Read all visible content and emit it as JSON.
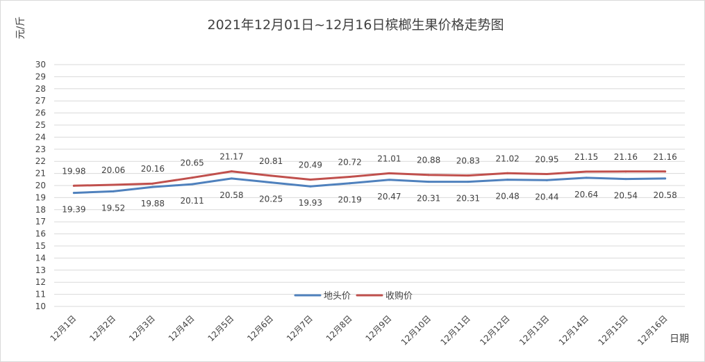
{
  "chart_data": {
    "type": "line",
    "title": "2021年12月01日~12月16日槟榔生果价格走势图",
    "xlabel": "日期",
    "ylabel": "元/斤",
    "ylim": [
      10,
      30
    ],
    "yticks": [
      10,
      11,
      12,
      13,
      14,
      15,
      16,
      17,
      18,
      19,
      20,
      21,
      22,
      23,
      24,
      25,
      26,
      27,
      28,
      29,
      30
    ],
    "grid": true,
    "legend_position": "bottom-center",
    "categories": [
      "12月1日",
      "12月2日",
      "12月3日",
      "12月4日",
      "12月5日",
      "12月6日",
      "12月7日",
      "12月8日",
      "12月9日",
      "12月10日",
      "12月11日",
      "12月12日",
      "12月13日",
      "12月14日",
      "12月15日",
      "12月16日"
    ],
    "series": [
      {
        "name": "地头价",
        "color": "#4f81bd",
        "label_position": "below",
        "values": [
          19.39,
          19.52,
          19.88,
          20.11,
          20.58,
          20.25,
          19.93,
          20.19,
          20.47,
          20.31,
          20.31,
          20.48,
          20.44,
          20.64,
          20.54,
          20.58
        ],
        "labels": [
          "19.39",
          "19.52",
          "19.88",
          "20.11",
          "20.58",
          "20.25",
          "19.93",
          "20.19",
          "20.47",
          "20.31",
          "20.31",
          "20.48",
          "20.44",
          "20.64",
          "20.54",
          "20.58"
        ]
      },
      {
        "name": "收购价",
        "color": "#c0504d",
        "label_position": "above",
        "values": [
          19.98,
          20.06,
          20.16,
          20.65,
          21.17,
          20.81,
          20.49,
          20.72,
          21.01,
          20.88,
          20.83,
          21.02,
          20.95,
          21.15,
          21.16,
          21.16
        ],
        "labels": [
          "19.98",
          "20.06",
          "20.16",
          "20.65",
          "21.17",
          "20.81",
          "20.49",
          "20.72",
          "21.01",
          "20.88",
          "20.83",
          "21.02",
          "20.95",
          "21.15",
          "21.16",
          "21.16"
        ]
      }
    ]
  }
}
